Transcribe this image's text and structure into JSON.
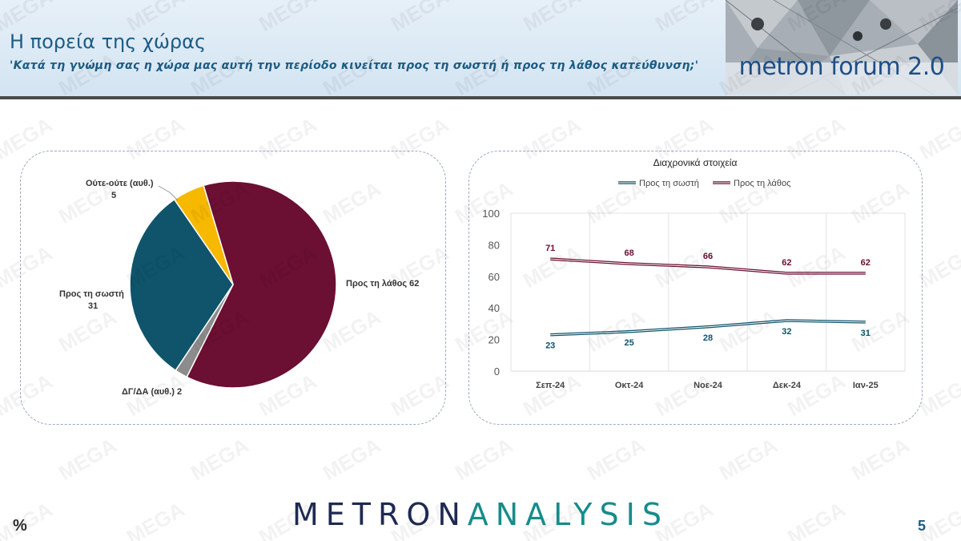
{
  "header": {
    "title": "Η πορεία της χώρας",
    "subtitle": "'Κατά τη γνώμη σας η χώρα μας αυτή την περίοδο κινείται προς τη σωστή ή προς τη λάθος κατεύθυνση;'",
    "logo_text": "metron forum 2.0"
  },
  "watermark_text": "MEGA",
  "footer": {
    "brand_part1": "METRON",
    "brand_part2": "ANALYSIS",
    "percent_sign": "%",
    "page_number": "5"
  },
  "colors": {
    "wrong": "#6b0f33",
    "right": "#0f546b",
    "neutral": "#f7b800",
    "dk": "#8c8c8c",
    "title": "#1b5c84"
  },
  "chart_data": [
    {
      "type": "pie",
      "slices": [
        {
          "label": "Προς τη λάθος 62",
          "value": 62,
          "color": "#6b0f33"
        },
        {
          "label": "ΔΓ/ΔΑ (αυθ.) 2",
          "value": 2,
          "color": "#8c8c8c"
        },
        {
          "label_line1": "Προς τη σωστή",
          "label_line2": "31",
          "value": 31,
          "color": "#0f546b"
        },
        {
          "label_line1": "Ούτε-ούτε (αυθ.)",
          "label_line2": "5",
          "value": 5,
          "color": "#f7b800"
        }
      ]
    },
    {
      "type": "line",
      "title": "Διαχρονικά στοιχεία",
      "categories": [
        "Σεπ-24",
        "Οκτ-24",
        "Νοε-24",
        "Δεκ-24",
        "Ιαν-25"
      ],
      "ylim": [
        0,
        100
      ],
      "yticks": [
        "0",
        "20",
        "40",
        "60",
        "80",
        "100"
      ],
      "grid": true,
      "legend": "top",
      "series": [
        {
          "name": "Προς τη σωστή",
          "values": [
            23,
            25,
            28,
            32,
            31
          ],
          "color": "#0f546b"
        },
        {
          "name": "Προς τη λάθος",
          "values": [
            71,
            68,
            66,
            62,
            62
          ],
          "color": "#6b0f33"
        }
      ]
    }
  ]
}
